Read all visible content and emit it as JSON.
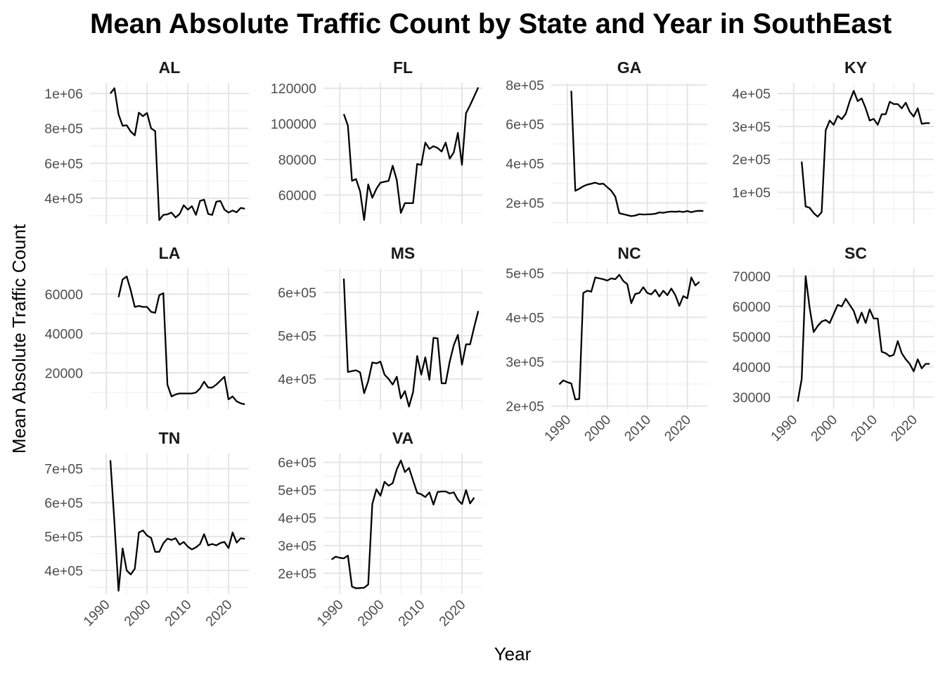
{
  "chart_data": {
    "type": "line",
    "title": "Mean Absolute Traffic Count by State and Year in SouthEast",
    "xlabel": "Year",
    "ylabel": "Mean Absolute Traffic Count",
    "grid": true,
    "x_ticks": [
      "1990",
      "2000",
      "2010",
      "2020"
    ],
    "xlim": [
      1986,
      2025
    ],
    "panels": [
      {
        "name": "AL",
        "ylim": [
          255000,
          1060000
        ],
        "y_ticks": [
          {
            "v": 400000,
            "label": "4e+05"
          },
          {
            "v": 600000,
            "label": "6e+05"
          },
          {
            "v": 800000,
            "label": "8e+05"
          },
          {
            "v": 1000000,
            "label": "1e+06"
          }
        ],
        "x": [
          1991,
          1992,
          1993,
          1994,
          1995,
          1996,
          1997,
          1998,
          1999,
          2000,
          2001,
          2002,
          2003,
          2004,
          2005,
          2006,
          2007,
          2008,
          2009,
          2010,
          2011,
          2012,
          2013,
          2014,
          2015,
          2016,
          2017,
          2018,
          2019,
          2020,
          2021,
          2022,
          2023,
          2024
        ],
        "y": [
          1000000,
          1030000,
          880000,
          815000,
          818000,
          782000,
          760000,
          890000,
          870000,
          888000,
          800000,
          785000,
          275000,
          305000,
          308000,
          318000,
          290000,
          310000,
          360000,
          335000,
          355000,
          305000,
          385000,
          392000,
          310000,
          305000,
          380000,
          385000,
          335000,
          318000,
          330000,
          320000,
          345000,
          340000
        ]
      },
      {
        "name": "FL",
        "ylim": [
          44000,
          123000
        ],
        "y_ticks": [
          {
            "v": 60000,
            "label": "60000"
          },
          {
            "v": 80000,
            "label": "80000"
          },
          {
            "v": 100000,
            "label": "100000"
          },
          {
            "v": 120000,
            "label": "120000"
          }
        ],
        "x": [
          1991,
          1992,
          1993,
          1994,
          1995,
          1996,
          1997,
          1998,
          1999,
          2000,
          2001,
          2002,
          2003,
          2004,
          2005,
          2006,
          2007,
          2008,
          2009,
          2010,
          2011,
          2012,
          2013,
          2014,
          2015,
          2016,
          2017,
          2018,
          2019,
          2020,
          2021,
          2022,
          2023,
          2024
        ],
        "y": [
          105500,
          99000,
          68000,
          69000,
          62000,
          46000,
          66000,
          58500,
          63500,
          67000,
          67500,
          68000,
          76500,
          68500,
          50000,
          55500,
          55500,
          55500,
          77500,
          77000,
          89500,
          86000,
          87500,
          86500,
          84500,
          89500,
          80500,
          84000,
          95000,
          77000,
          106000,
          110500,
          115500,
          120500
        ]
      },
      {
        "name": "GA",
        "ylim": [
          95000,
          810000
        ],
        "y_ticks": [
          {
            "v": 200000,
            "label": "2e+05"
          },
          {
            "v": 400000,
            "label": "4e+05"
          },
          {
            "v": 600000,
            "label": "6e+05"
          },
          {
            "v": 800000,
            "label": "8e+05"
          }
        ],
        "x": [
          1991,
          1992,
          1993,
          1994,
          1995,
          1996,
          1997,
          1998,
          1999,
          2000,
          2001,
          2002,
          2003,
          2004,
          2005,
          2006,
          2007,
          2008,
          2009,
          2010,
          2011,
          2012,
          2013,
          2014,
          2015,
          2016,
          2017,
          2018,
          2019,
          2020,
          2021,
          2022,
          2023,
          2024
        ],
        "y": [
          770000,
          262000,
          272000,
          285000,
          293000,
          298000,
          303000,
          296000,
          298000,
          280000,
          262000,
          232000,
          148000,
          143000,
          138000,
          133000,
          136000,
          143000,
          141000,
          142000,
          143000,
          145000,
          152000,
          150000,
          154000,
          156000,
          155000,
          157000,
          154000,
          159000,
          153000,
          158000,
          160000,
          159000
        ]
      },
      {
        "name": "KY",
        "ylim": [
          5000,
          432000
        ],
        "y_ticks": [
          {
            "v": 100000,
            "label": "1e+05"
          },
          {
            "v": 200000,
            "label": "2e+05"
          },
          {
            "v": 300000,
            "label": "3e+05"
          },
          {
            "v": 400000,
            "label": "4e+05"
          }
        ],
        "x": [
          1992,
          1993,
          1994,
          1995,
          1996,
          1997,
          1998,
          1999,
          2000,
          2001,
          2002,
          2003,
          2004,
          2005,
          2006,
          2007,
          2008,
          2009,
          2010,
          2011,
          2012,
          2013,
          2014,
          2015,
          2016,
          2017,
          2018,
          2019,
          2020,
          2021,
          2022,
          2023,
          2024
        ],
        "y": [
          193000,
          57000,
          53000,
          37000,
          26000,
          40000,
          288000,
          318000,
          305000,
          332000,
          322000,
          338000,
          377000,
          408000,
          377000,
          385000,
          355000,
          318000,
          323000,
          305000,
          337000,
          337000,
          375000,
          368000,
          368000,
          355000,
          372000,
          345000,
          330000,
          355000,
          308000,
          310000,
          310000
        ]
      },
      {
        "name": "LA",
        "ylim": [
          1500,
          73000
        ],
        "y_ticks": [
          {
            "v": 20000,
            "label": "20000"
          },
          {
            "v": 40000,
            "label": "40000"
          },
          {
            "v": 60000,
            "label": "60000"
          }
        ],
        "x": [
          1993,
          1994,
          1995,
          1996,
          1997,
          1998,
          1999,
          2000,
          2001,
          2002,
          2003,
          2004,
          2005,
          2006,
          2007,
          2008,
          2009,
          2010,
          2011,
          2012,
          2013,
          2014,
          2015,
          2016,
          2017,
          2018,
          2019,
          2020,
          2021,
          2022,
          2023,
          2024
        ],
        "y": [
          58500,
          67500,
          69000,
          62000,
          53500,
          54000,
          53500,
          53500,
          51000,
          50500,
          59500,
          60500,
          14000,
          8000,
          9000,
          9500,
          9500,
          9500,
          9500,
          10000,
          12000,
          15500,
          12500,
          12500,
          14000,
          16000,
          18000,
          6500,
          8000,
          5500,
          4500,
          4000
        ]
      },
      {
        "name": "MS",
        "ylim": [
          330000,
          655000
        ],
        "y_ticks": [
          {
            "v": 400000,
            "label": "4e+05"
          },
          {
            "v": 500000,
            "label": "5e+05"
          },
          {
            "v": 600000,
            "label": "6e+05"
          }
        ],
        "x": [
          1991,
          1992,
          1993,
          1994,
          1995,
          1996,
          1997,
          1998,
          1999,
          2000,
          2001,
          2002,
          2003,
          2004,
          2005,
          2006,
          2007,
          2008,
          2009,
          2010,
          2011,
          2012,
          2013,
          2014,
          2015,
          2016,
          2017,
          2018,
          2019,
          2020,
          2021,
          2022,
          2023,
          2024
        ],
        "y": [
          632000,
          416000,
          418000,
          420000,
          415000,
          367000,
          395000,
          438000,
          436000,
          440000,
          410000,
          400000,
          387000,
          405000,
          355000,
          372000,
          336000,
          370000,
          453000,
          410000,
          450000,
          398000,
          495000,
          494000,
          390000,
          390000,
          440000,
          478000,
          502000,
          433000,
          480000,
          480000,
          520000,
          557000
        ]
      },
      {
        "name": "NC",
        "ylim": [
          193000,
          510000
        ],
        "y_ticks": [
          {
            "v": 200000,
            "label": "2e+05"
          },
          {
            "v": 300000,
            "label": "3e+05"
          },
          {
            "v": 400000,
            "label": "4e+05"
          },
          {
            "v": 500000,
            "label": "5e+05"
          }
        ],
        "x": [
          1988,
          1989,
          1990,
          1991,
          1992,
          1993,
          1994,
          1995,
          1996,
          1997,
          1998,
          1999,
          2000,
          2001,
          2002,
          2003,
          2004,
          2005,
          2006,
          2007,
          2008,
          2009,
          2010,
          2011,
          2012,
          2013,
          2014,
          2015,
          2016,
          2017,
          2018,
          2019,
          2020,
          2021,
          2022,
          2023
        ],
        "y": [
          249000,
          258000,
          254000,
          251000,
          215000,
          216000,
          455000,
          460000,
          458000,
          490000,
          488000,
          486000,
          483000,
          488000,
          486000,
          496000,
          482000,
          475000,
          432000,
          453000,
          455000,
          468000,
          455000,
          452000,
          462000,
          447000,
          460000,
          450000,
          465000,
          450000,
          426000,
          448000,
          443000,
          490000,
          472000,
          480000
        ]
      },
      {
        "name": "SC",
        "ylim": [
          26000,
          72500
        ],
        "y_ticks": [
          {
            "v": 30000,
            "label": "30000"
          },
          {
            "v": 40000,
            "label": "40000"
          },
          {
            "v": 50000,
            "label": "50000"
          },
          {
            "v": 60000,
            "label": "60000"
          },
          {
            "v": 70000,
            "label": "70000"
          }
        ],
        "x": [
          1991,
          1992,
          1993,
          1994,
          1995,
          1996,
          1997,
          1998,
          1999,
          2000,
          2001,
          2002,
          2003,
          2004,
          2005,
          2006,
          2007,
          2008,
          2009,
          2010,
          2011,
          2012,
          2013,
          2014,
          2015,
          2016,
          2017,
          2018,
          2019,
          2020,
          2021,
          2022,
          2023,
          2024
        ],
        "y": [
          28500,
          36000,
          70000,
          59500,
          51500,
          53500,
          55000,
          55500,
          54500,
          57500,
          60500,
          60000,
          62500,
          60500,
          58500,
          54500,
          58000,
          54500,
          59000,
          56000,
          56000,
          45000,
          44500,
          43500,
          44000,
          48500,
          44500,
          42500,
          41000,
          38500,
          42500,
          39500,
          41000,
          41000
        ]
      },
      {
        "name": "TN",
        "ylim": [
          330000,
          745000
        ],
        "y_ticks": [
          {
            "v": 400000,
            "label": "4e+05"
          },
          {
            "v": 500000,
            "label": "5e+05"
          },
          {
            "v": 600000,
            "label": "6e+05"
          },
          {
            "v": 700000,
            "label": "7e+05"
          }
        ],
        "x": [
          1991,
          1992,
          1993,
          1994,
          1995,
          1996,
          1997,
          1998,
          1999,
          2000,
          2001,
          2002,
          2003,
          2004,
          2005,
          2006,
          2007,
          2008,
          2009,
          2010,
          2011,
          2012,
          2013,
          2014,
          2015,
          2016,
          2017,
          2018,
          2019,
          2020,
          2021,
          2022,
          2023,
          2024
        ],
        "y": [
          725000,
          540000,
          340000,
          465000,
          400000,
          388000,
          405000,
          512000,
          518000,
          503000,
          496000,
          455000,
          455000,
          480000,
          494000,
          490000,
          495000,
          476000,
          484000,
          470000,
          462000,
          468000,
          478000,
          507000,
          474000,
          478000,
          474000,
          481000,
          484000,
          466000,
          512000,
          482000,
          495000,
          493000
        ]
      },
      {
        "name": "VA",
        "ylim": [
          125000,
          632000
        ],
        "y_ticks": [
          {
            "v": 200000,
            "label": "2e+05"
          },
          {
            "v": 300000,
            "label": "3e+05"
          },
          {
            "v": 400000,
            "label": "4e+05"
          },
          {
            "v": 500000,
            "label": "5e+05"
          },
          {
            "v": 600000,
            "label": "6e+05"
          }
        ],
        "x": [
          1988,
          1989,
          1990,
          1991,
          1992,
          1993,
          1994,
          1995,
          1996,
          1997,
          1998,
          1999,
          2000,
          2001,
          2002,
          2003,
          2004,
          2005,
          2006,
          2007,
          2008,
          2009,
          2010,
          2011,
          2012,
          2013,
          2014,
          2015,
          2016,
          2017,
          2018,
          2019,
          2020,
          2021,
          2022,
          2023
        ],
        "y": [
          250000,
          260000,
          256000,
          254000,
          264000,
          152000,
          146000,
          147000,
          148000,
          160000,
          450000,
          503000,
          480000,
          530000,
          516000,
          525000,
          575000,
          607000,
          565000,
          580000,
          535000,
          490000,
          485000,
          475000,
          492000,
          448000,
          493000,
          495000,
          495000,
          488000,
          492000,
          465000,
          450000,
          500000,
          452000,
          473000
        ]
      }
    ]
  }
}
